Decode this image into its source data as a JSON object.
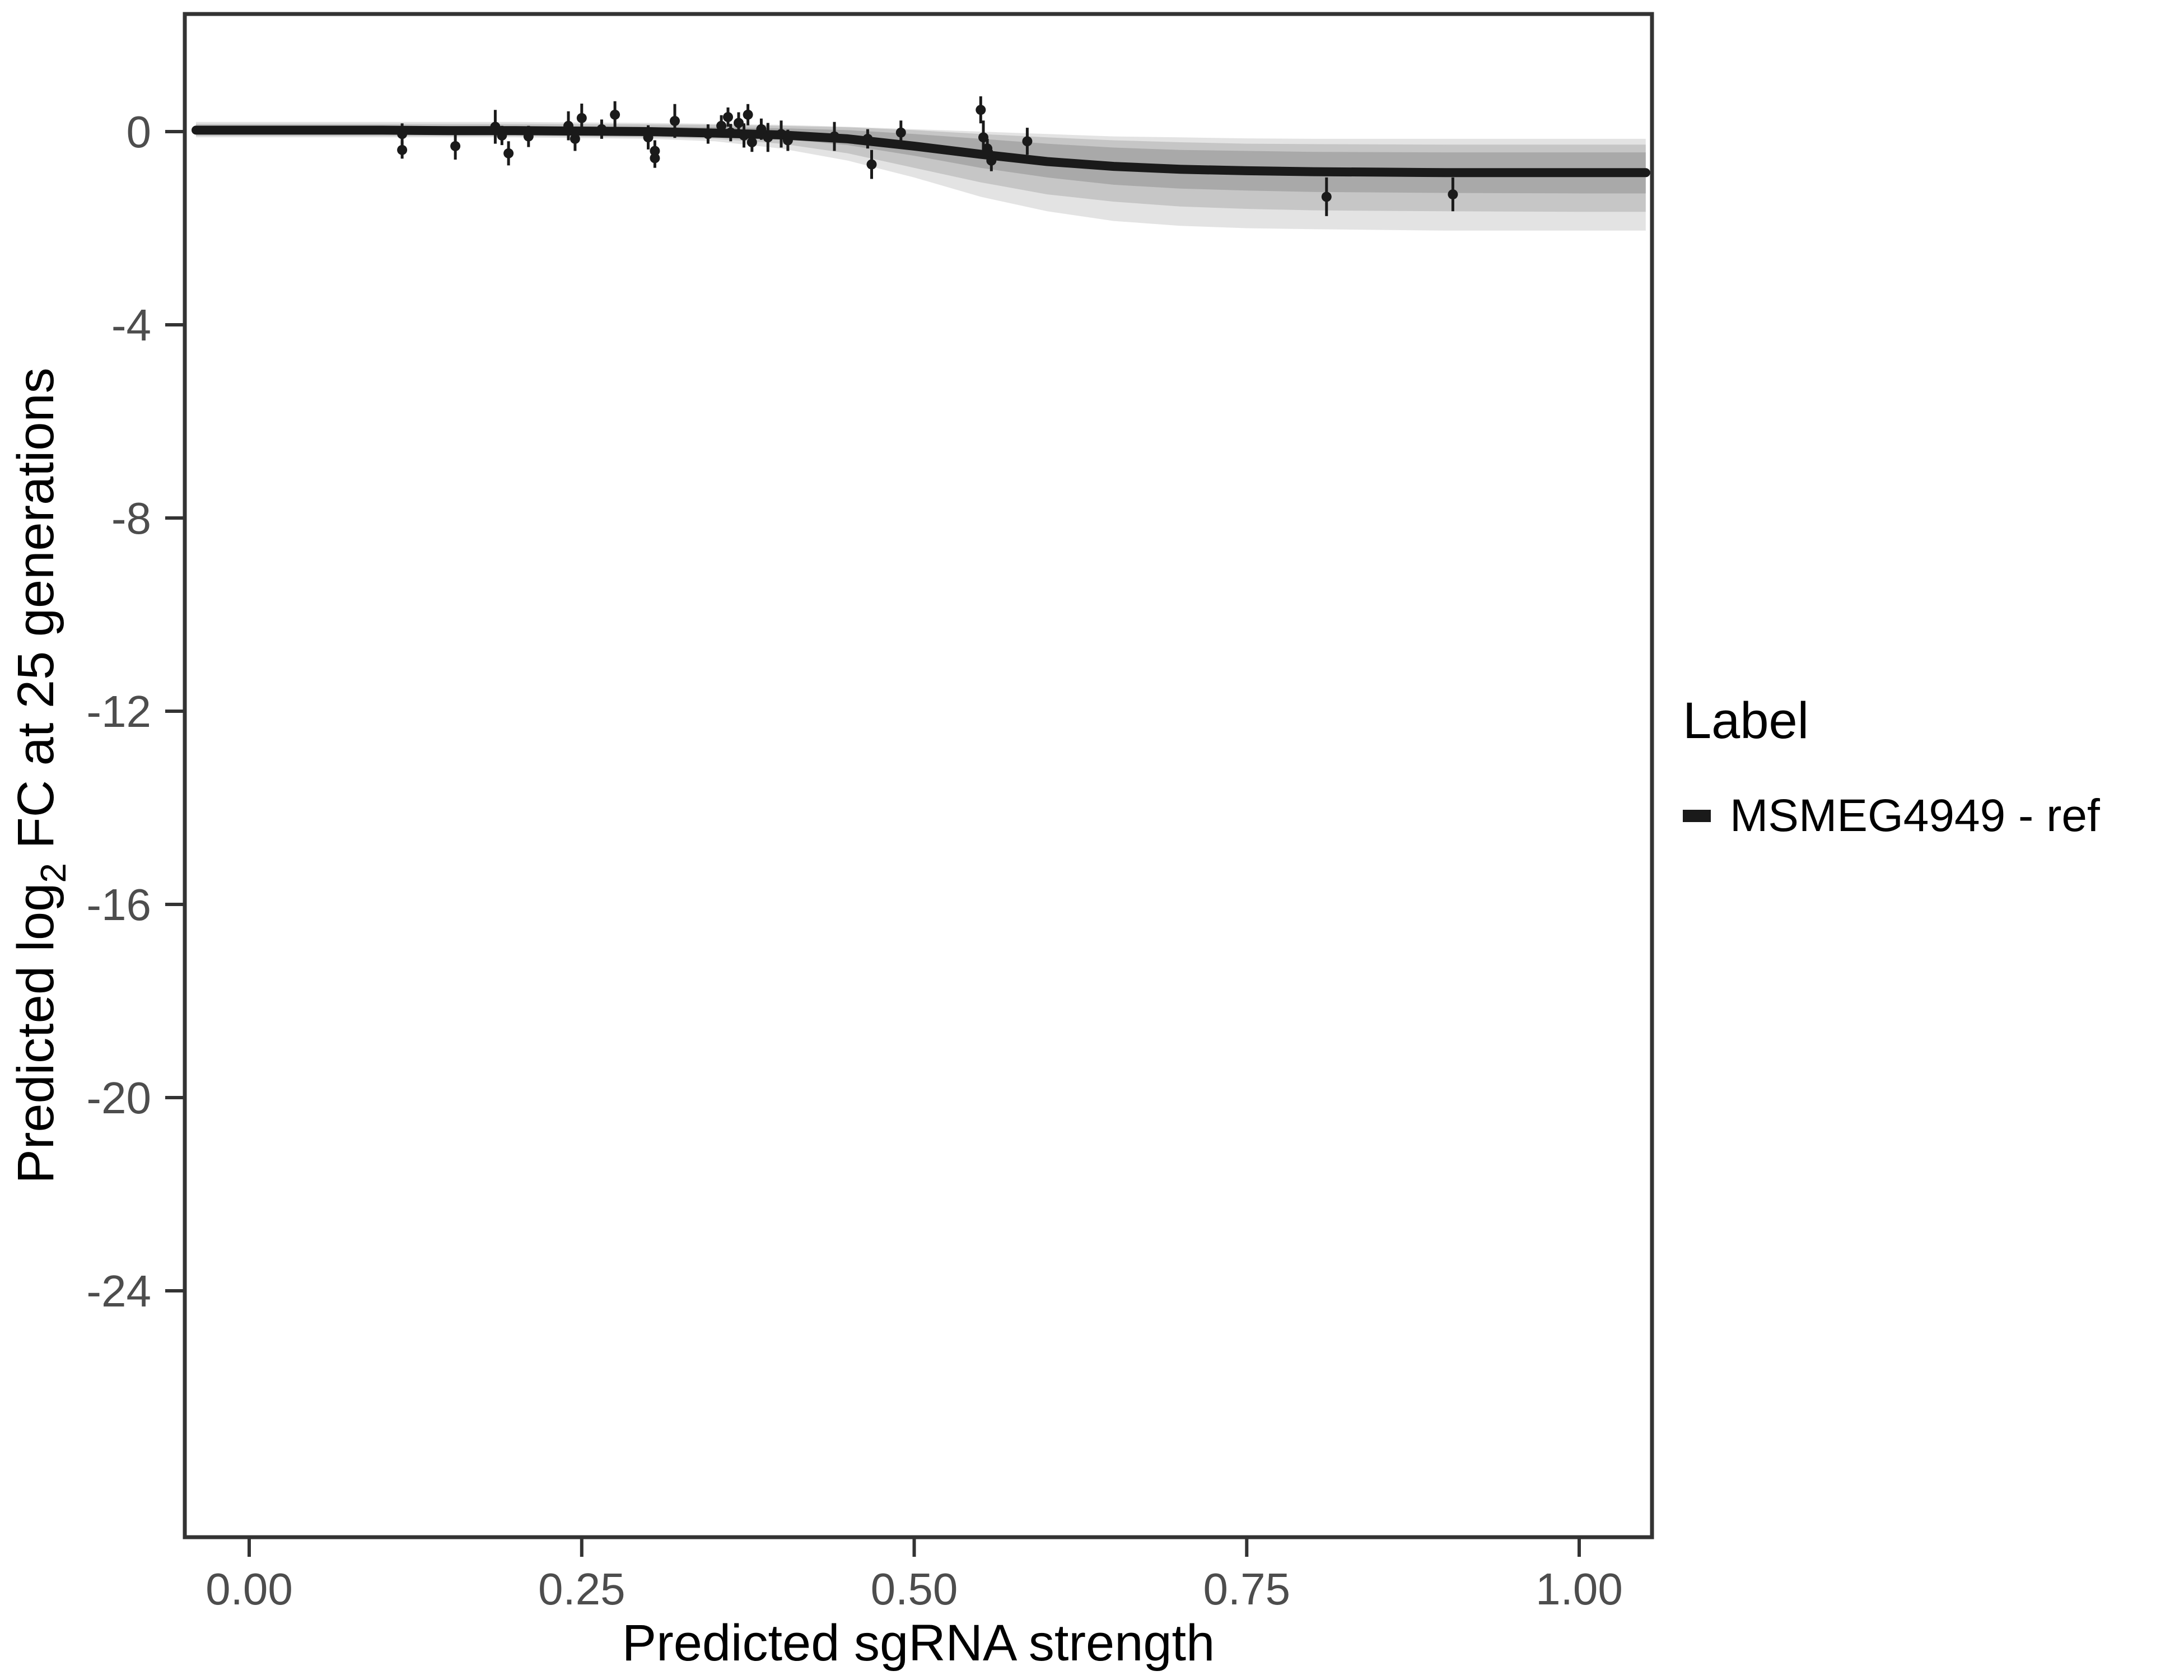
{
  "chart_data": {
    "type": "scatter",
    "title": "",
    "xlabel": "Predicted sgRNA strength",
    "ylabel": "Predicted log2 FC at 25 generations",
    "ylabel_parts": {
      "pre": "Predicted log",
      "sub": "2",
      "post": " FC at 25 generations"
    },
    "xlim": [
      -0.05,
      1.055
    ],
    "ylim": [
      -29.2,
      2.5
    ],
    "grid": "off",
    "x_ticks": [
      0.0,
      0.25,
      0.5,
      0.75,
      1.0
    ],
    "x_tick_labels": [
      "0.00",
      "0.25",
      "0.50",
      "0.75",
      "1.00"
    ],
    "y_ticks": [
      0,
      -4,
      -8,
      -12,
      -16,
      -20,
      -24
    ],
    "y_tick_labels": [
      "0",
      "-4",
      "-8",
      "-12",
      "-16",
      "-20",
      "-24"
    ],
    "legend": {
      "title": "Label",
      "position": "right",
      "entries": [
        {
          "label": "MSMEG4949 - ref",
          "color": "#1a1a1a",
          "marker": "thick-line"
        }
      ]
    },
    "fit_line": {
      "name": "MSMEG4949 - ref",
      "color": "#1a1a1a",
      "width": 16,
      "points": [
        [
          -0.04,
          0.03
        ],
        [
          0.0,
          0.03
        ],
        [
          0.05,
          0.03
        ],
        [
          0.1,
          0.03
        ],
        [
          0.15,
          0.02
        ],
        [
          0.2,
          0.02
        ],
        [
          0.25,
          0.01
        ],
        [
          0.3,
          0.0
        ],
        [
          0.35,
          -0.03
        ],
        [
          0.4,
          -0.07
        ],
        [
          0.45,
          -0.15
        ],
        [
          0.5,
          -0.3
        ],
        [
          0.55,
          -0.47
        ],
        [
          0.6,
          -0.62
        ],
        [
          0.65,
          -0.72
        ],
        [
          0.7,
          -0.78
        ],
        [
          0.75,
          -0.81
        ],
        [
          0.8,
          -0.83
        ],
        [
          0.85,
          -0.84
        ],
        [
          0.9,
          -0.85
        ],
        [
          0.95,
          -0.85
        ],
        [
          1.0,
          -0.85
        ],
        [
          1.05,
          -0.85
        ]
      ]
    },
    "bands": [
      {
        "name": "outer-credible-band",
        "fill": "#b0b0b0",
        "opacity": 0.35,
        "x": [
          -0.04,
          0.0,
          0.1,
          0.2,
          0.3,
          0.35,
          0.4,
          0.45,
          0.5,
          0.55,
          0.6,
          0.65,
          0.7,
          0.75,
          0.8,
          0.9,
          1.0,
          1.05
        ],
        "upper": [
          0.2,
          0.2,
          0.2,
          0.2,
          0.18,
          0.16,
          0.14,
          0.1,
          0.05,
          0.0,
          -0.05,
          -0.1,
          -0.12,
          -0.14,
          -0.15,
          -0.15,
          -0.15,
          -0.15
        ],
        "lower": [
          -0.12,
          -0.12,
          -0.12,
          -0.12,
          -0.15,
          -0.2,
          -0.35,
          -0.6,
          -0.95,
          -1.35,
          -1.65,
          -1.85,
          -1.95,
          -2.0,
          -2.02,
          -2.05,
          -2.05,
          -2.05
        ]
      },
      {
        "name": "middle-credible-band",
        "fill": "#9a9a9a",
        "opacity": 0.4,
        "x": [
          -0.04,
          0.0,
          0.1,
          0.2,
          0.3,
          0.35,
          0.4,
          0.45,
          0.5,
          0.55,
          0.6,
          0.65,
          0.7,
          0.75,
          0.8,
          0.9,
          1.0,
          1.05
        ],
        "upper": [
          0.16,
          0.16,
          0.16,
          0.16,
          0.15,
          0.14,
          0.12,
          0.09,
          0.03,
          -0.05,
          -0.12,
          -0.18,
          -0.22,
          -0.25,
          -0.26,
          -0.27,
          -0.27,
          -0.27
        ],
        "lower": [
          -0.09,
          -0.09,
          -0.09,
          -0.09,
          -0.12,
          -0.15,
          -0.25,
          -0.45,
          -0.75,
          -1.05,
          -1.3,
          -1.45,
          -1.55,
          -1.6,
          -1.63,
          -1.65,
          -1.66,
          -1.66
        ]
      },
      {
        "name": "inner-credible-band",
        "fill": "#8c8c8c",
        "opacity": 0.5,
        "x": [
          -0.04,
          0.0,
          0.1,
          0.2,
          0.3,
          0.35,
          0.4,
          0.45,
          0.5,
          0.55,
          0.6,
          0.65,
          0.7,
          0.75,
          0.8,
          0.9,
          1.0,
          1.05
        ],
        "upper": [
          0.12,
          0.12,
          0.12,
          0.12,
          0.1,
          0.09,
          0.07,
          0.03,
          -0.05,
          -0.15,
          -0.25,
          -0.33,
          -0.38,
          -0.4,
          -0.42,
          -0.43,
          -0.43,
          -0.43
        ],
        "lower": [
          -0.06,
          -0.06,
          -0.06,
          -0.06,
          -0.08,
          -0.1,
          -0.15,
          -0.28,
          -0.5,
          -0.75,
          -0.95,
          -1.1,
          -1.18,
          -1.22,
          -1.25,
          -1.27,
          -1.28,
          -1.28
        ]
      }
    ],
    "points_note": "each point is [x, y, y_error_halfwidth]",
    "points": [
      [
        0.115,
        -0.05,
        0.22
      ],
      [
        0.115,
        -0.38,
        0.18
      ],
      [
        0.155,
        -0.3,
        0.28
      ],
      [
        0.185,
        0.1,
        0.35
      ],
      [
        0.19,
        -0.08,
        0.2
      ],
      [
        0.195,
        -0.45,
        0.25
      ],
      [
        0.21,
        -0.1,
        0.22
      ],
      [
        0.24,
        0.12,
        0.3
      ],
      [
        0.245,
        -0.15,
        0.25
      ],
      [
        0.25,
        0.28,
        0.3
      ],
      [
        0.265,
        0.05,
        0.2
      ],
      [
        0.275,
        0.35,
        0.28
      ],
      [
        0.3,
        -0.12,
        0.25
      ],
      [
        0.305,
        -0.4,
        0.22
      ],
      [
        0.305,
        -0.55,
        0.2
      ],
      [
        0.32,
        0.22,
        0.35
      ],
      [
        0.345,
        -0.05,
        0.2
      ],
      [
        0.355,
        0.12,
        0.22
      ],
      [
        0.36,
        0.3,
        0.2
      ],
      [
        0.362,
        -0.02,
        0.18
      ],
      [
        0.368,
        0.18,
        0.22
      ],
      [
        0.372,
        -0.08,
        0.25
      ],
      [
        0.375,
        0.35,
        0.22
      ],
      [
        0.378,
        -0.22,
        0.2
      ],
      [
        0.385,
        0.05,
        0.22
      ],
      [
        0.39,
        -0.12,
        0.3
      ],
      [
        0.4,
        -0.05,
        0.28
      ],
      [
        0.405,
        -0.18,
        0.22
      ],
      [
        0.44,
        -0.1,
        0.3
      ],
      [
        0.465,
        -0.15,
        0.2
      ],
      [
        0.468,
        -0.68,
        0.3
      ],
      [
        0.49,
        -0.02,
        0.25
      ],
      [
        0.55,
        0.45,
        0.28
      ],
      [
        0.552,
        -0.12,
        0.35
      ],
      [
        0.555,
        -0.35,
        0.2
      ],
      [
        0.558,
        -0.6,
        0.22
      ],
      [
        0.585,
        -0.2,
        0.28
      ],
      [
        0.81,
        -1.35,
        0.4
      ],
      [
        0.905,
        -1.3,
        0.35
      ]
    ],
    "point_color": "#1a1a1a",
    "panel_border_color": "#333333",
    "tick_color": "#333333"
  }
}
